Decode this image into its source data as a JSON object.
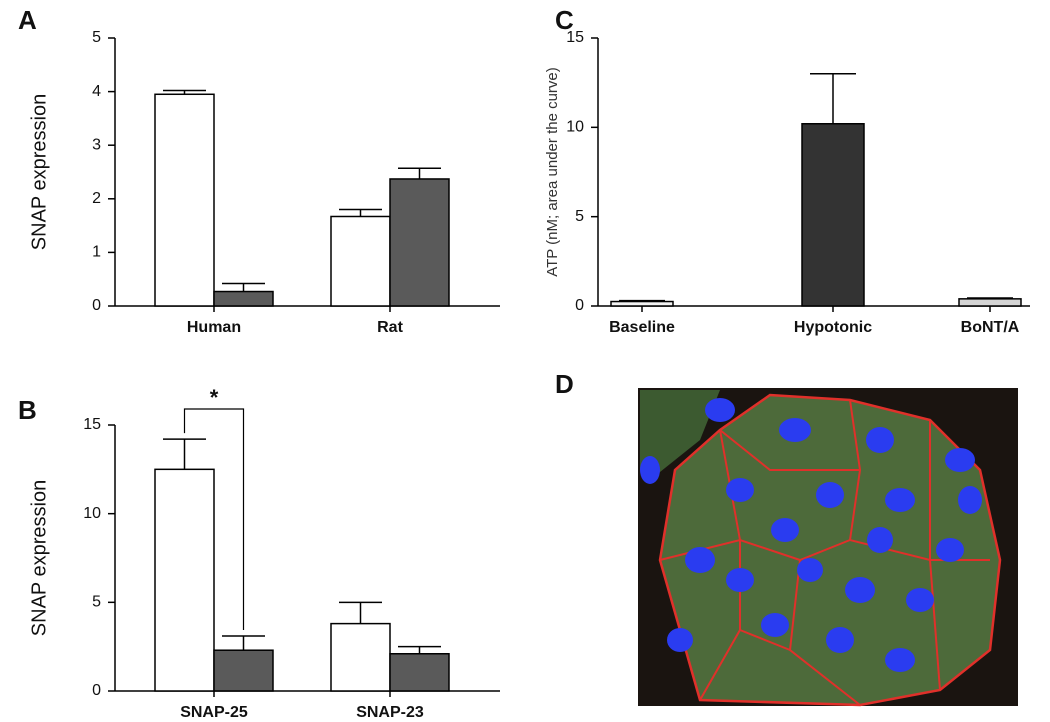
{
  "chart_data": [
    {
      "panel": "A",
      "type": "bar",
      "ylabel": "SNAP expression",
      "categories": [
        "Human",
        "Rat"
      ],
      "series": [
        {
          "color": "#ffffff",
          "values": [
            3.95,
            1.67
          ],
          "errors": [
            0.07,
            0.13
          ]
        },
        {
          "color": "#5a5a5a",
          "values": [
            0.27,
            2.37
          ],
          "errors": [
            0.15,
            0.2
          ]
        }
      ],
      "ylim": [
        0,
        5
      ],
      "yticks": [
        0,
        1,
        2,
        3,
        4,
        5
      ]
    },
    {
      "panel": "B",
      "type": "bar",
      "ylabel": "SNAP expression",
      "annotation": "*",
      "categories": [
        "SNAP-25",
        "SNAP-23"
      ],
      "series": [
        {
          "color": "#ffffff",
          "values": [
            12.5,
            3.8
          ],
          "errors": [
            1.7,
            1.2
          ]
        },
        {
          "color": "#5a5a5a",
          "values": [
            2.3,
            2.1
          ],
          "errors": [
            0.8,
            0.4
          ]
        }
      ],
      "ylim": [
        0,
        15
      ],
      "yticks": [
        0,
        5,
        10,
        15
      ]
    },
    {
      "panel": "C",
      "type": "bar",
      "ylabel": "ATP (nM; area under the curve)",
      "categories": [
        "Baseline",
        "Hypotonic",
        "BoNT/A"
      ],
      "series": [
        {
          "colors": [
            "#f2f2f2",
            "#333333",
            "#d4d4d4"
          ],
          "values": [
            0.25,
            10.2,
            0.4
          ],
          "errors": [
            0.05,
            2.8,
            0.05
          ]
        }
      ],
      "ylim": [
        0,
        15
      ],
      "yticks": [
        0,
        5,
        10,
        15
      ]
    }
  ],
  "image_panel": {
    "panel": "D"
  }
}
